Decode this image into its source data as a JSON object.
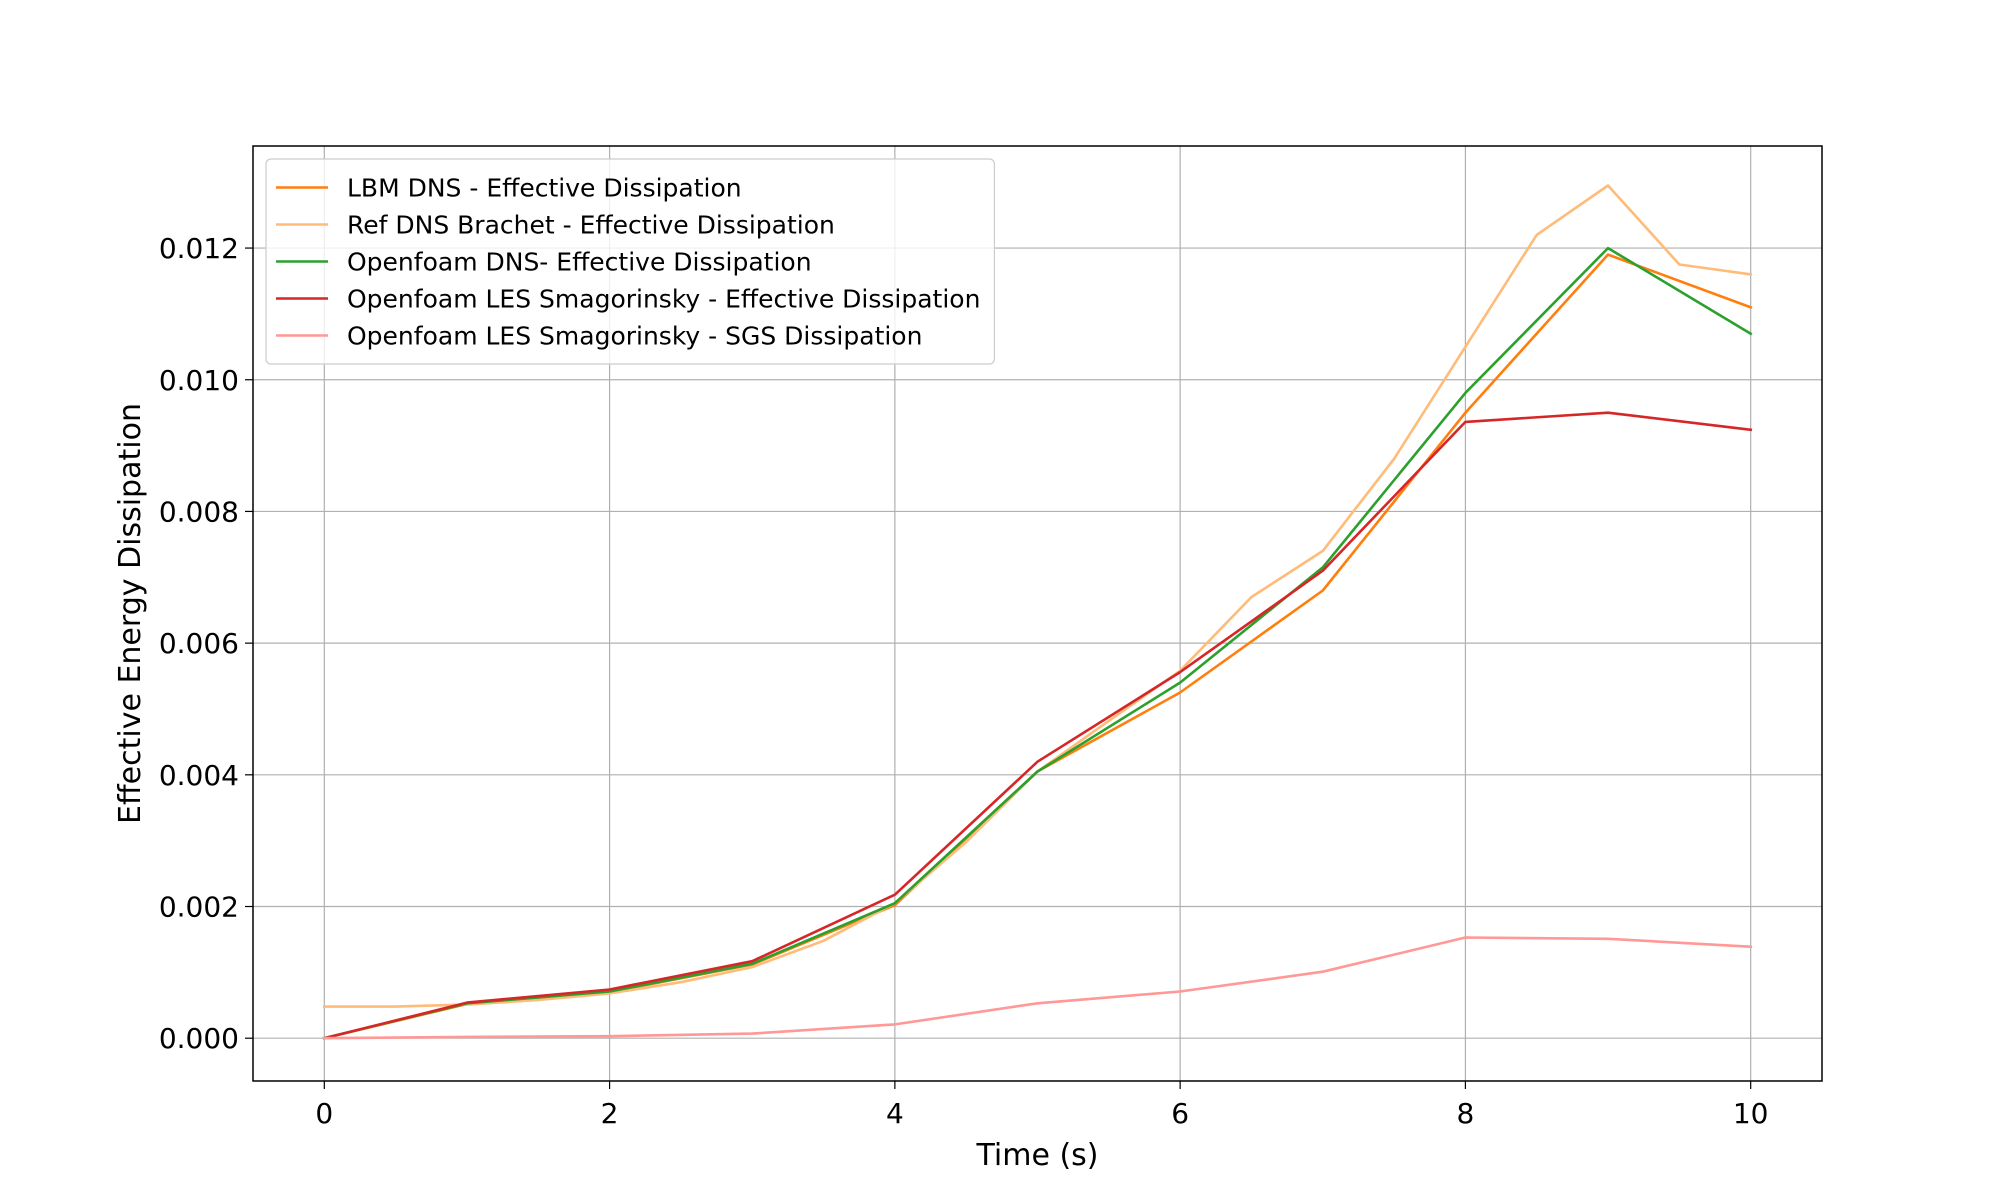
{
  "chart_data": {
    "type": "line",
    "title": "",
    "xlabel": "Time (s)",
    "ylabel": "Effective Energy Dissipation",
    "xlim": [
      -0.5,
      10.5
    ],
    "ylim": [
      -0.00065,
      0.01355
    ],
    "xticks": [
      0,
      2,
      4,
      6,
      8,
      10
    ],
    "xtick_labels": [
      "0",
      "2",
      "4",
      "6",
      "8",
      "10"
    ],
    "yticks": [
      0.0,
      0.002,
      0.004,
      0.006,
      0.008,
      0.01,
      0.012
    ],
    "ytick_labels": [
      "0.000",
      "0.002",
      "0.004",
      "0.006",
      "0.008",
      "0.010",
      "0.012"
    ],
    "grid": true,
    "legend_position": "top-left",
    "series": [
      {
        "name": "LBM DNS - Effective Dissipation",
        "color": "#ff7f0e",
        "x": [
          0,
          1,
          2,
          3,
          4,
          5,
          6,
          7,
          8,
          9,
          10
        ],
        "y": [
          0.0,
          0.00052,
          0.0007,
          0.00112,
          0.00202,
          0.00405,
          0.00525,
          0.0068,
          0.0095,
          0.0119,
          0.0111
        ]
      },
      {
        "name": "Ref DNS Brachet - Effective Dissipation",
        "color": "#ffbb78",
        "x": [
          0,
          0.5,
          1,
          1.5,
          2,
          2.5,
          3,
          3.5,
          4,
          4.5,
          5,
          5.5,
          6,
          6.5,
          7,
          7.5,
          8,
          8.5,
          9,
          9.5,
          10
        ],
        "y": [
          0.00048,
          0.00048,
          0.00051,
          0.00058,
          0.00068,
          0.00085,
          0.00108,
          0.00148,
          0.00205,
          0.00298,
          0.00405,
          0.00482,
          0.00558,
          0.0067,
          0.0074,
          0.0088,
          0.0105,
          0.0122,
          0.01295,
          0.01175,
          0.0116
        ]
      },
      {
        "name": "Openfoam DNS- Effective Dissipation",
        "color": "#2ca02c",
        "x": [
          0,
          1,
          2,
          3,
          4,
          5,
          6,
          7,
          8,
          9,
          10
        ],
        "y": [
          0.0,
          0.00053,
          0.00071,
          0.00113,
          0.00205,
          0.00405,
          0.0054,
          0.00715,
          0.0098,
          0.012,
          0.0107
        ]
      },
      {
        "name": "Openfoam LES Smagorinsky - Effective Dissipation",
        "color": "#d62728",
        "x": [
          0,
          1,
          2,
          3,
          4,
          5,
          6,
          7,
          8,
          9,
          10
        ],
        "y": [
          0.0,
          0.00054,
          0.00074,
          0.00117,
          0.00218,
          0.0042,
          0.00556,
          0.0071,
          0.00936,
          0.0095,
          0.00924
        ]
      },
      {
        "name": "Openfoam LES Smagorinsky - SGS Dissipation",
        "color": "#ff9896",
        "x": [
          0,
          1,
          2,
          3,
          4,
          5,
          6,
          7,
          8,
          9,
          10
        ],
        "y": [
          0.0,
          2e-05,
          3e-05,
          7e-05,
          0.00021,
          0.00053,
          0.00071,
          0.00101,
          0.00153,
          0.00151,
          0.00139
        ]
      }
    ]
  }
}
